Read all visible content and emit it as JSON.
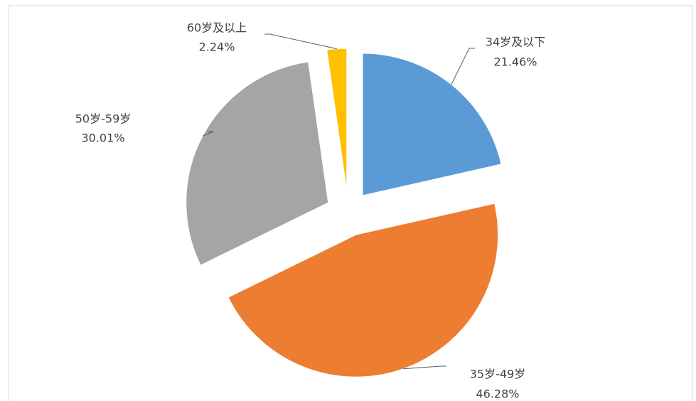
{
  "chart_data": {
    "type": "pie",
    "categories": [
      "34岁及以下",
      "35岁-49岁",
      "50岁-59岁",
      "60岁及以上"
    ],
    "values": [
      21.46,
      46.28,
      30.01,
      2.24
    ],
    "value_labels": [
      "21.46%",
      "46.28%",
      "30.01%",
      "2.24%"
    ],
    "colors": [
      "#5b9bd5",
      "#ed7d31",
      "#a5a5a5",
      "#ffc000"
    ],
    "exploded": true
  }
}
